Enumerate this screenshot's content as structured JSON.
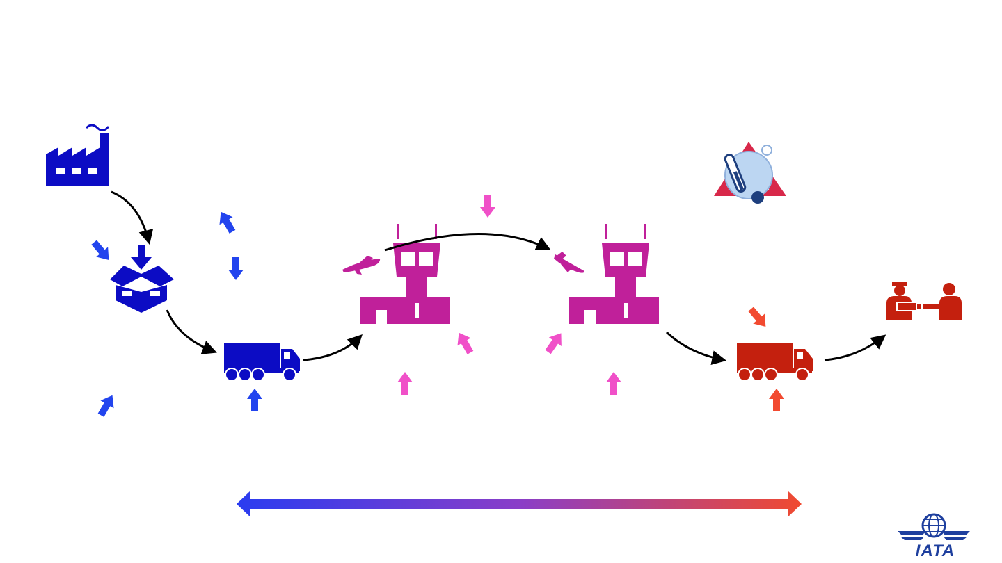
{
  "colors": {
    "origin_blue": "#0c0cc4",
    "arrow_blue": "#2244ee",
    "airport_magenta": "#c0209a",
    "arrow_pink": "#f050c8",
    "destination_red": "#c4200e",
    "arrow_red": "#f24a30",
    "flow_black": "#000000",
    "alert_red": "#d8284a",
    "iata_blue": "#1e3f9e",
    "gradient_start": "#2a3cf0",
    "gradient_mid": "#8a3ec8",
    "gradient_end": "#f04a30"
  },
  "icons": [
    "factory-icon",
    "packing-box-icon",
    "truck-icon",
    "control-tower-icon",
    "plane-takeoff-icon",
    "plane-landing-icon",
    "temperature-alert-icon",
    "handover-icon",
    "iata-globe-icon"
  ],
  "logo": {
    "text": "IATA"
  }
}
